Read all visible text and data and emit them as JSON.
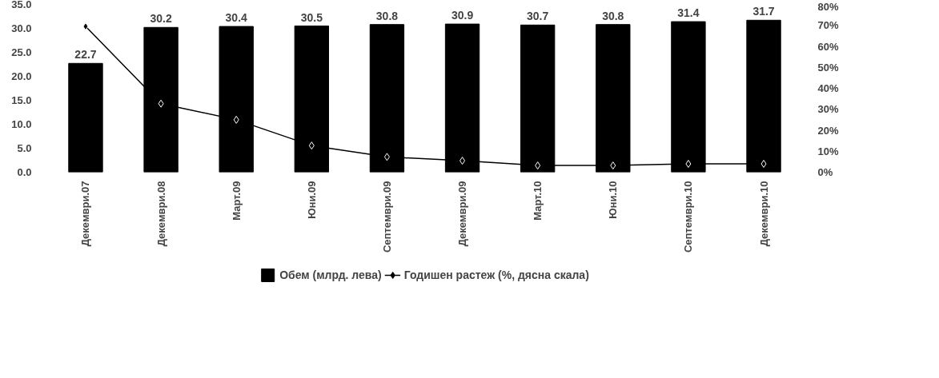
{
  "chart_data": {
    "type": "bar",
    "categories": [
      "Декември.07",
      "Декември.08",
      "Март.09",
      "Юни.09",
      "Септември.09",
      "Декември.09",
      "Март.10",
      "Юни.10",
      "Септември.10",
      "Декември.10"
    ],
    "series": [
      {
        "name": "Обем (млрд. лева)",
        "color": "#000000",
        "type": "bar",
        "values": [
          22.7,
          30.2,
          30.4,
          30.5,
          30.8,
          30.9,
          30.7,
          30.8,
          31.4,
          31.7
        ],
        "data_labels": true
      },
      {
        "name": "Годишен растеж (%, дясна скала)",
        "color": "#000000",
        "type": "line",
        "axis": "y2",
        "marker": "diamond",
        "values": [
          69.5,
          32.7,
          25,
          12.7,
          7.3,
          5.5,
          3.2,
          3.2,
          4,
          4
        ]
      }
    ],
    "ylim": [
      0,
      35
    ],
    "yticks": [
      {
        "value": 0,
        "label": "0.0"
      },
      {
        "value": 5,
        "label": "5.0"
      },
      {
        "value": 10,
        "label": "10.0"
      },
      {
        "value": 15,
        "label": "15.0"
      },
      {
        "value": 20,
        "label": "20.0"
      },
      {
        "value": 25,
        "label": "25.0"
      },
      {
        "value": 30,
        "label": "30.0"
      },
      {
        "value": 35,
        "label": "35.0"
      }
    ],
    "y2lim": [
      0,
      80
    ],
    "y2ticks": [
      {
        "value": 0,
        "label": "0%"
      },
      {
        "value": 10,
        "label": "10%"
      },
      {
        "value": 20,
        "label": "20%"
      },
      {
        "value": 30,
        "label": "30%"
      },
      {
        "value": 40,
        "label": "40%"
      },
      {
        "value": 50,
        "label": "50%"
      },
      {
        "value": 60,
        "label": "60%"
      },
      {
        "value": 70,
        "label": "70%"
      },
      {
        "value": 80,
        "label": "80%"
      }
    ],
    "grid": false,
    "legend": "bottom"
  }
}
